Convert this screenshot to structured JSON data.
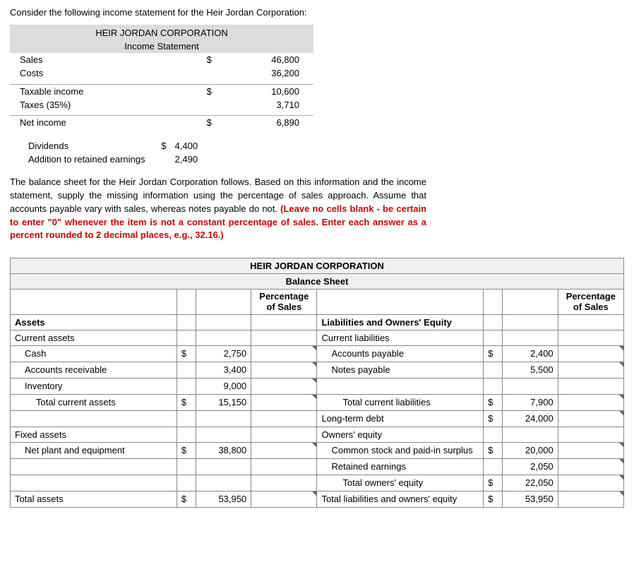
{
  "intro": "Consider the following income statement for the Heir Jordan Corporation:",
  "income": {
    "header1": "HEIR JORDAN CORPORATION",
    "header2": "Income Statement",
    "rows": {
      "sales_label": "Sales",
      "sales_amt": "46,800",
      "sales_cur": "$",
      "costs_label": "Costs",
      "costs_amt": "36,200",
      "taxable_label": "Taxable income",
      "taxable_amt": "10,600",
      "taxable_cur": "$",
      "taxes_label": "Taxes (35%)",
      "taxes_amt": "3,710",
      "net_label": "Net income",
      "net_amt": "6,890",
      "net_cur": "$"
    },
    "div_label": "Dividends",
    "div_amt": "4,400",
    "div_cur": "$",
    "are_label": "Addition to retained earnings",
    "are_amt": "2,490"
  },
  "instructions_plain": "The balance sheet for the Heir Jordan Corporation follows. Based on this information and the income statement, supply the missing information using the percentage of sales approach. Assume that accounts payable vary with sales, whereas notes payable do not. ",
  "instructions_red": "(Leave no cells blank - be certain to enter \"0\" whenever the item is not a constant percentage of sales. Enter each answer as a percent rounded to 2 decimal places, e.g., 32.16.)",
  "balance": {
    "title1": "HEIR JORDAN CORPORATION",
    "title2": "Balance Sheet",
    "pct_header": "Percentage of Sales",
    "assets_header": "Assets",
    "liab_header": "Liabilities and Owners' Equity",
    "cur_assets": "Current assets",
    "cur_liab": "Current liabilities",
    "cash_label": "Cash",
    "cash_cur": "$",
    "cash_amt": "2,750",
    "ap_label": "Accounts payable",
    "ap_cur": "$",
    "ap_amt": "2,400",
    "ar_label": "Accounts receivable",
    "ar_amt": "3,400",
    "np_label": "Notes payable",
    "np_amt": "5,500",
    "inv_label": "Inventory",
    "inv_amt": "9,000",
    "tca_label": "Total current assets",
    "tca_cur": "$",
    "tca_amt": "15,150",
    "tcl_label": "Total current liabilities",
    "tcl_cur": "$",
    "tcl_amt": "7,900",
    "ltd_label": "Long-term debt",
    "ltd_cur": "$",
    "ltd_amt": "24,000",
    "fixed_label": "Fixed assets",
    "oe_label": "Owners' equity",
    "npe_label": "Net plant and equipment",
    "npe_cur": "$",
    "npe_amt": "38,800",
    "cs_label": "Common stock and paid-in surplus",
    "cs_cur": "$",
    "cs_amt": "20,000",
    "re_label": "Retained earnings",
    "re_amt": "2,050",
    "toe_label": "Total owners' equity",
    "toe_cur": "$",
    "toe_amt": "22,050",
    "ta_label": "Total assets",
    "ta_cur": "$",
    "ta_amt": "53,950",
    "tloe_label": "Total liabilities and owners' equity",
    "tloe_cur": "$",
    "tloe_amt": "53,950"
  },
  "colors": {
    "header_bg": "#dcdcdc",
    "border": "#888888",
    "red": "#cc0000",
    "input_corner": "#666666"
  }
}
